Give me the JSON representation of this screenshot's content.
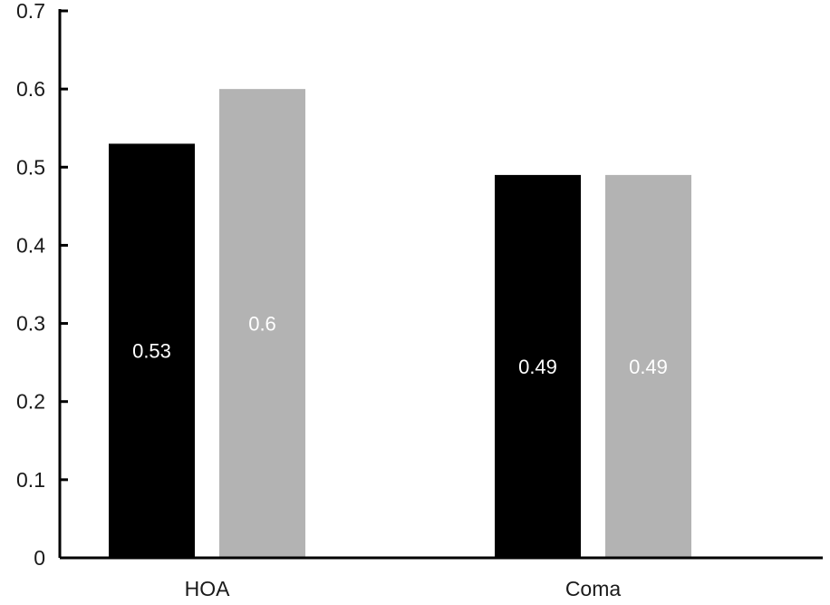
{
  "chart_data": {
    "type": "bar",
    "categories": [
      "HOA",
      "Coma"
    ],
    "series": [
      {
        "values": [
          0.53,
          0.49
        ],
        "color": "#000000",
        "labels": [
          "0.53",
          "0.49"
        ]
      },
      {
        "values": [
          0.6,
          0.49
        ],
        "color": "#b3b3b3",
        "labels": [
          "0.6",
          "0.49"
        ]
      }
    ],
    "y_ticks": [
      "0",
      "0.1",
      "0.2",
      "0.3",
      "0.4",
      "0.5",
      "0.6",
      "0.7"
    ],
    "ylim": [
      0,
      0.7
    ],
    "title": "",
    "xlabel": "",
    "ylabel": "",
    "grid": false,
    "legend": "none"
  }
}
